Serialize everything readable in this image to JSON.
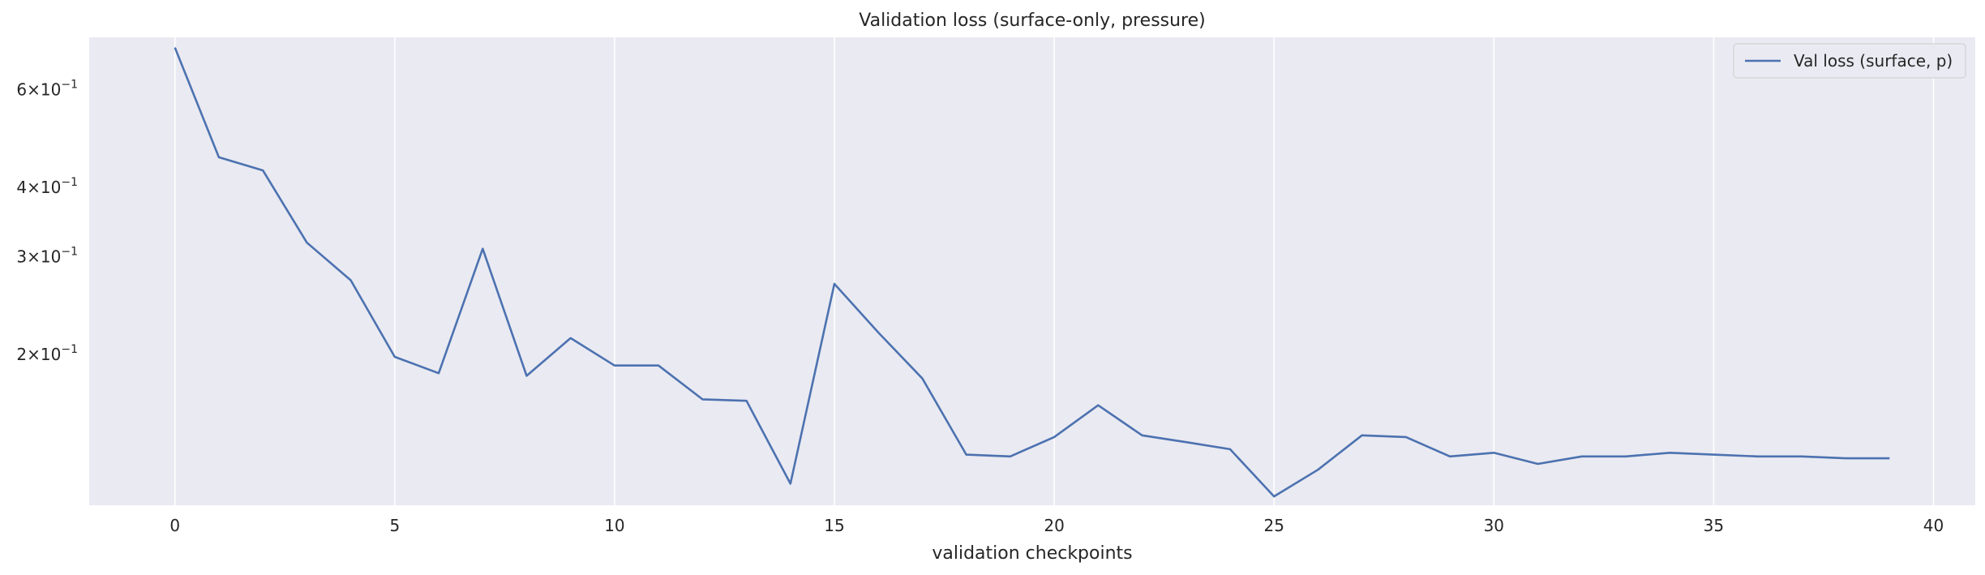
{
  "chart_data": {
    "type": "line",
    "title": "Validation loss (surface-only, pressure)",
    "xlabel": "validation checkpoints",
    "ylabel": "",
    "yscale": "log",
    "xlim": [
      -1.95,
      40.95
    ],
    "ylim": [
      0.107,
      0.745
    ],
    "xticks": [
      0,
      5,
      10,
      15,
      20,
      25,
      30,
      35,
      40
    ],
    "yticks": [
      {
        "value": 0.6,
        "mantissa": "6",
        "base": "10",
        "exp": "−1"
      },
      {
        "value": 0.4,
        "mantissa": "4",
        "base": "10",
        "exp": "−1"
      },
      {
        "value": 0.3,
        "mantissa": "3",
        "base": "10",
        "exp": "−1"
      },
      {
        "value": 0.2,
        "mantissa": "2",
        "base": "10",
        "exp": "−1"
      }
    ],
    "grid": true,
    "legend_position": "top-right",
    "background": "#eaeaf2",
    "series": [
      {
        "name": "Val loss (surface, p)",
        "color": "#4c72b0",
        "x": [
          0,
          1,
          2,
          3,
          4,
          5,
          6,
          7,
          8,
          9,
          10,
          11,
          12,
          13,
          14,
          15,
          16,
          17,
          18,
          19,
          20,
          21,
          22,
          23,
          24,
          25,
          26,
          27,
          28,
          29,
          30,
          31,
          32,
          33,
          34,
          35,
          36,
          37,
          38,
          39
        ],
        "values": [
          0.714,
          0.453,
          0.429,
          0.318,
          0.272,
          0.198,
          0.185,
          0.31,
          0.183,
          0.214,
          0.191,
          0.191,
          0.166,
          0.165,
          0.117,
          0.268,
          0.219,
          0.181,
          0.132,
          0.131,
          0.142,
          0.162,
          0.143,
          0.139,
          0.135,
          0.111,
          0.124,
          0.143,
          0.142,
          0.131,
          0.133,
          0.127,
          0.131,
          0.131,
          0.133,
          0.132,
          0.131,
          0.131,
          0.13,
          0.13
        ]
      }
    ]
  }
}
